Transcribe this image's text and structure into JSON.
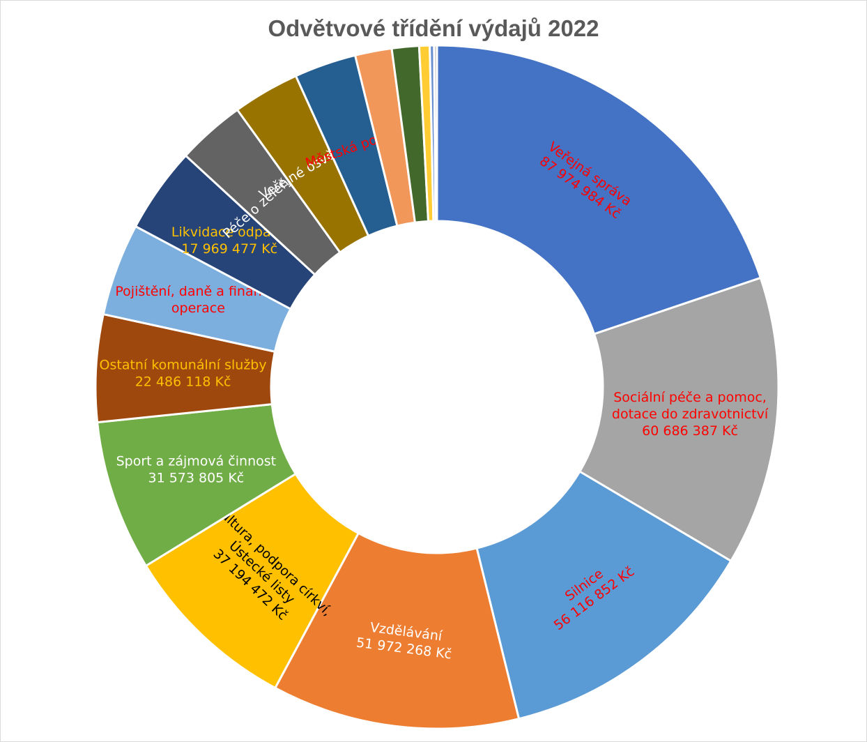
{
  "chart_data": {
    "type": "pie",
    "subtype": "doughnut",
    "title": "Odvětvové třídění výdajů 2022",
    "legend": "none",
    "series": [
      {
        "slices": [
          {
            "name": "Veřejná správa",
            "value": 87974984,
            "value_label": "87 974 984 Kč",
            "color": "#4472C4",
            "label_color": "#FF0000",
            "show_label": true
          },
          {
            "name": "Sociální péče a pomoc, dotace do zdravotnictví",
            "name_lines": [
              "Sociální péče a pomoc,",
              "dotace do zdravotnictví"
            ],
            "value": 60686387,
            "value_label": "60 686 387 Kč",
            "color": "#A5A5A5",
            "label_color": "#FF0000",
            "show_label": true
          },
          {
            "name": "Silnice",
            "value": 56116852,
            "value_label": "56 116 852 Kč",
            "color": "#5B9BD5",
            "label_color": "#FF0000",
            "show_label": true
          },
          {
            "name": "Vzdělávání",
            "value": 51972268,
            "value_label": "51 972 268 Kč",
            "color": "#ED7D31",
            "label_color": "#FFFFFF",
            "show_label": true
          },
          {
            "name": "Kultura, podpora církví, Ústecké listy",
            "name_lines": [
              "Kultura, podpora církví,",
              "Ústecké listy"
            ],
            "value": 37194472,
            "value_label": "37 194 472 Kč",
            "color": "#FFC000",
            "label_color": "#000000",
            "show_label": true
          },
          {
            "name": "Sport a zájmová činnost",
            "value": 31573805,
            "value_label": "31 573 805 Kč",
            "color": "#70AD47",
            "label_color": "#FFFFFF",
            "show_label": true
          },
          {
            "name": "Ostatní komunální služby",
            "value": 22486118,
            "value_label": "22 486 118 Kč",
            "color": "#9E480E",
            "label_color": "#FFC000",
            "show_label": true
          },
          {
            "name": "Pojištění, daně a finanční operace",
            "name_lines": [
              "Pojištění, daně a finanční",
              "operace"
            ],
            "value": 19400000,
            "value_label": "",
            "color": "#7CAFDD",
            "label_color": "#FF0000",
            "show_label": true
          },
          {
            "name": "Likvidace odpadů",
            "value": 17969477,
            "value_label": "17 969 477 Kč",
            "color": "#264478",
            "label_color": "#FFC000",
            "show_label": true
          },
          {
            "name": "Péče o zeleň a ŽP",
            "value": 14300000,
            "value_label": "",
            "color": "#636363",
            "label_color": "#FFFFFF",
            "show_label": true
          },
          {
            "name": "Veřejné osvětlení",
            "value": 14000000,
            "value_label": "",
            "color": "#997300",
            "label_color": "#FFFFFF",
            "show_label": true
          },
          {
            "name": "Městská policie",
            "value": 13000000,
            "value_label": "",
            "color": "#255E91",
            "label_color": "#FF0000",
            "show_label": true
          },
          {
            "name": "",
            "value": 7700000,
            "value_label": "",
            "color": "#F1975A",
            "label_color": "#000000",
            "show_label": false
          },
          {
            "name": "",
            "value": 5700000,
            "value_label": "",
            "color": "#43682B",
            "label_color": "#000000",
            "show_label": false
          },
          {
            "name": "",
            "value": 2200000,
            "value_label": "",
            "color": "#FFCD33",
            "label_color": "#000000",
            "show_label": false
          },
          {
            "name": "",
            "value": 900000,
            "value_label": "",
            "color": "#698ED0",
            "label_color": "#000000",
            "show_label": false
          },
          {
            "name": "",
            "value": 600000,
            "value_label": "",
            "color": "#B7B7B7",
            "label_color": "#000000",
            "show_label": false
          }
        ]
      }
    ]
  }
}
